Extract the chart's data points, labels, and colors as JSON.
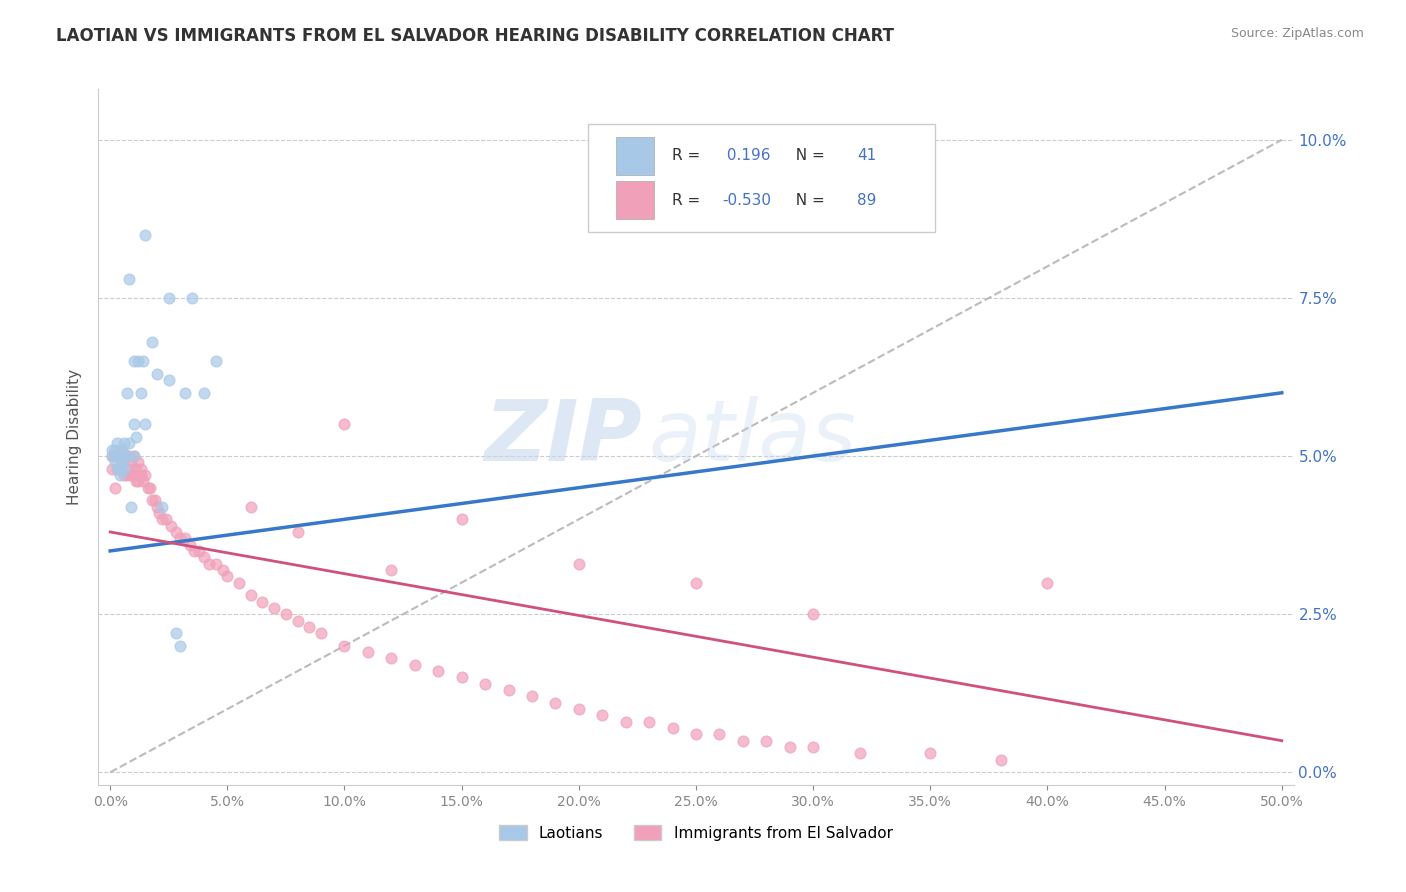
{
  "title": "LAOTIAN VS IMMIGRANTS FROM EL SALVADOR HEARING DISABILITY CORRELATION CHART",
  "source": "Source: ZipAtlas.com",
  "ylabel": "Hearing Disability",
  "legend_labels": [
    "Laotians",
    "Immigrants from El Salvador"
  ],
  "r_laotian": 0.196,
  "n_laotian": 41,
  "r_salvador": -0.53,
  "n_salvador": 89,
  "xlim": [
    -0.005,
    0.505
  ],
  "ylim": [
    -0.002,
    0.108
  ],
  "x_ticks": [
    0.0,
    0.05,
    0.1,
    0.15,
    0.2,
    0.25,
    0.3,
    0.35,
    0.4,
    0.45,
    0.5
  ],
  "y_ticks": [
    0.0,
    0.025,
    0.05,
    0.075,
    0.1
  ],
  "color_laotian": "#a8c8e8",
  "color_salvador": "#f0a0b8",
  "line_color_laotian": "#3878c8",
  "line_color_salvador": "#d05080",
  "trendline_color": "#bbbbbb",
  "background_color": "#ffffff",
  "watermark_zip": "ZIP",
  "watermark_atlas": "atlas",
  "blue_tick_color": "#4472c4",
  "laotian_x": [
    0.001,
    0.001,
    0.002,
    0.002,
    0.003,
    0.003,
    0.003,
    0.004,
    0.004,
    0.004,
    0.005,
    0.005,
    0.005,
    0.006,
    0.006,
    0.006,
    0.007,
    0.007,
    0.008,
    0.008,
    0.009,
    0.01,
    0.01,
    0.011,
    0.012,
    0.013,
    0.014,
    0.015,
    0.018,
    0.02,
    0.022,
    0.025,
    0.028,
    0.032,
    0.035,
    0.04,
    0.045,
    0.025,
    0.01,
    0.015,
    0.03
  ],
  "laotian_y": [
    0.05,
    0.051,
    0.049,
    0.051,
    0.048,
    0.05,
    0.052,
    0.047,
    0.05,
    0.048,
    0.049,
    0.051,
    0.05,
    0.052,
    0.048,
    0.05,
    0.06,
    0.05,
    0.078,
    0.052,
    0.042,
    0.055,
    0.05,
    0.053,
    0.065,
    0.06,
    0.065,
    0.055,
    0.068,
    0.063,
    0.042,
    0.062,
    0.022,
    0.06,
    0.075,
    0.06,
    0.065,
    0.075,
    0.065,
    0.085,
    0.02
  ],
  "salvador_x": [
    0.001,
    0.001,
    0.002,
    0.002,
    0.003,
    0.003,
    0.004,
    0.004,
    0.005,
    0.005,
    0.006,
    0.006,
    0.007,
    0.007,
    0.008,
    0.008,
    0.009,
    0.009,
    0.01,
    0.01,
    0.011,
    0.011,
    0.012,
    0.012,
    0.013,
    0.013,
    0.014,
    0.015,
    0.016,
    0.017,
    0.018,
    0.019,
    0.02,
    0.021,
    0.022,
    0.024,
    0.026,
    0.028,
    0.03,
    0.032,
    0.034,
    0.036,
    0.038,
    0.04,
    0.042,
    0.045,
    0.048,
    0.05,
    0.055,
    0.06,
    0.065,
    0.07,
    0.075,
    0.08,
    0.085,
    0.09,
    0.1,
    0.11,
    0.12,
    0.13,
    0.14,
    0.15,
    0.16,
    0.17,
    0.18,
    0.19,
    0.2,
    0.21,
    0.22,
    0.23,
    0.24,
    0.25,
    0.26,
    0.27,
    0.28,
    0.29,
    0.3,
    0.32,
    0.35,
    0.38,
    0.1,
    0.15,
    0.2,
    0.25,
    0.3,
    0.06,
    0.08,
    0.12,
    0.4
  ],
  "salvador_y": [
    0.048,
    0.05,
    0.045,
    0.05,
    0.048,
    0.05,
    0.048,
    0.05,
    0.049,
    0.051,
    0.047,
    0.05,
    0.047,
    0.05,
    0.048,
    0.05,
    0.047,
    0.049,
    0.047,
    0.05,
    0.046,
    0.048,
    0.046,
    0.049,
    0.047,
    0.048,
    0.046,
    0.047,
    0.045,
    0.045,
    0.043,
    0.043,
    0.042,
    0.041,
    0.04,
    0.04,
    0.039,
    0.038,
    0.037,
    0.037,
    0.036,
    0.035,
    0.035,
    0.034,
    0.033,
    0.033,
    0.032,
    0.031,
    0.03,
    0.028,
    0.027,
    0.026,
    0.025,
    0.024,
    0.023,
    0.022,
    0.02,
    0.019,
    0.018,
    0.017,
    0.016,
    0.015,
    0.014,
    0.013,
    0.012,
    0.011,
    0.01,
    0.009,
    0.008,
    0.008,
    0.007,
    0.006,
    0.006,
    0.005,
    0.005,
    0.004,
    0.004,
    0.003,
    0.003,
    0.002,
    0.055,
    0.04,
    0.033,
    0.03,
    0.025,
    0.042,
    0.038,
    0.032,
    0.03
  ],
  "lao_trend_x": [
    0.0,
    0.5
  ],
  "lao_trend_y": [
    0.035,
    0.06
  ],
  "sal_trend_x": [
    0.0,
    0.5
  ],
  "sal_trend_y": [
    0.038,
    0.005
  ]
}
